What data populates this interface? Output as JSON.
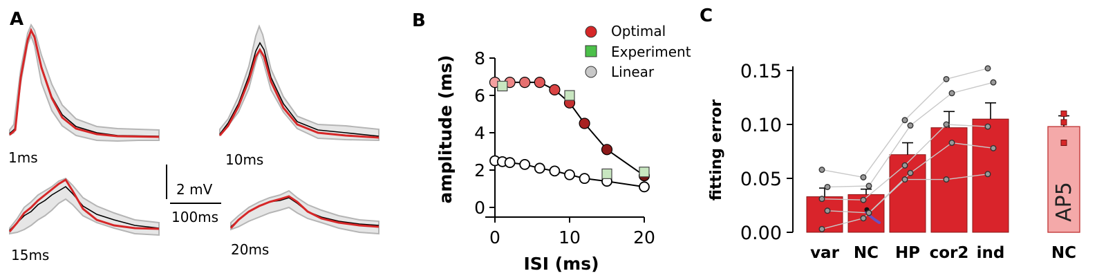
{
  "colors": {
    "red": "#d62728",
    "bar_red": "#d9242b",
    "bar_pink": "#f4a9a9",
    "gray": "#b5b5b5",
    "band": "#e6e6e6",
    "black": "#000000",
    "experiment_green": "#c8e6c0",
    "purple": "#6a4fc0"
  },
  "panels": {
    "a": "A",
    "b": "B",
    "c": "C"
  },
  "panel_a": {
    "traces": [
      {
        "label": "1ms"
      },
      {
        "label": "10ms"
      },
      {
        "label": "15ms"
      },
      {
        "label": "20ms"
      }
    ],
    "scalebar": {
      "voltage": "2 mV",
      "time": "100ms"
    }
  },
  "chart_data": [
    {
      "type": "line",
      "xlabel": "ISI (ms)",
      "ylabel": "amplitude (ms)",
      "xlim": [
        0,
        20
      ],
      "ylim": [
        0,
        8
      ],
      "xticks": [
        0,
        10,
        20
      ],
      "yticks": [
        0,
        2,
        4,
        6,
        8
      ],
      "legend": [
        "Optimal",
        "Experiment",
        "Linear"
      ],
      "legend_position": "top-right",
      "series": [
        {
          "name": "Optimal",
          "marker": "circle",
          "color": "#d62728",
          "x": [
            0,
            2,
            4,
            6,
            8,
            10,
            12,
            15,
            20
          ],
          "y": [
            6.7,
            6.7,
            6.7,
            6.7,
            6.3,
            5.6,
            4.5,
            3.1,
            1.7
          ]
        },
        {
          "name": "Experiment",
          "marker": "square",
          "color": "#c8e6c0",
          "x": [
            1,
            10,
            15,
            20
          ],
          "y": [
            6.5,
            6.0,
            1.8,
            1.9
          ]
        },
        {
          "name": "Linear",
          "marker": "circle-open",
          "color": "#ffffff",
          "x": [
            0,
            1,
            2,
            4,
            6,
            8,
            10,
            12,
            15,
            20
          ],
          "y": [
            2.5,
            2.45,
            2.4,
            2.3,
            2.1,
            1.95,
            1.75,
            1.55,
            1.4,
            1.1
          ]
        }
      ]
    },
    {
      "type": "bar",
      "ylabel": "fitting error",
      "ylim": [
        0,
        0.15
      ],
      "yticks": [
        "0.00",
        "0.05",
        "0.10",
        "0.15"
      ],
      "categories": [
        "var",
        "NC",
        "HP",
        "cor2",
        "ind"
      ],
      "values": [
        0.033,
        0.035,
        0.072,
        0.097,
        0.105
      ],
      "errors": [
        0.008,
        0.005,
        0.011,
        0.015,
        0.015
      ],
      "points": [
        [
          0.058,
          0.042,
          0.031,
          0.02,
          0.003
        ],
        [
          0.051,
          0.043,
          0.03,
          0.018,
          0.013
        ],
        [
          0.104,
          0.099,
          0.062,
          0.055,
          0.049
        ],
        [
          0.142,
          0.129,
          0.1,
          0.083,
          0.049
        ],
        [
          0.152,
          0.139,
          0.098,
          0.078,
          0.054
        ]
      ],
      "extra_bar": {
        "category": "NC",
        "value": 0.098,
        "inner_label": "AP5",
        "points": [
          0.11,
          0.102,
          0.083
        ]
      }
    }
  ]
}
